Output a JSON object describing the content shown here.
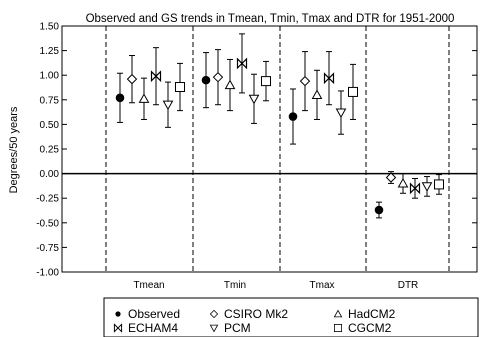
{
  "chart_data": {
    "type": "scatter",
    "title": "Observed and GS trends in Tmean, Tmin, Tmax and DTR for 1951-2000",
    "ylabel": "Degrees/50 years",
    "xlabel": "",
    "ylim": [
      -1.0,
      1.5
    ],
    "yticks": [
      "1.50",
      "1.25",
      "1.00",
      "0.75",
      "0.50",
      "0.25",
      "0.00",
      "-0.25",
      "-0.50",
      "-0.75",
      "-1.00"
    ],
    "categories": [
      "Tmean",
      "Tmin",
      "Tmax",
      "DTR"
    ],
    "grid": "dashed vertical category separators; solid zero line",
    "legend_position": "bottom",
    "series": [
      {
        "name": "Observed",
        "marker": "filled-circle",
        "values": [
          0.77,
          0.95,
          0.58,
          -0.37
        ],
        "lower": [
          0.52,
          0.67,
          0.3,
          -0.45
        ],
        "upper": [
          1.02,
          1.23,
          0.86,
          -0.29
        ]
      },
      {
        "name": "CSIRO Mk2",
        "marker": "diamond",
        "values": [
          0.96,
          0.98,
          0.94,
          -0.04
        ],
        "lower": [
          0.72,
          0.7,
          0.64,
          -0.1
        ],
        "upper": [
          1.2,
          1.26,
          1.24,
          0.02
        ]
      },
      {
        "name": "HadCM2",
        "marker": "triangle-up",
        "values": [
          0.76,
          0.9,
          0.8,
          -0.1
        ],
        "lower": [
          0.55,
          0.64,
          0.55,
          -0.2
        ],
        "upper": [
          0.97,
          1.16,
          1.05,
          0.0
        ]
      },
      {
        "name": "ECHAM4",
        "marker": "bowtie",
        "values": [
          0.99,
          1.12,
          0.97,
          -0.15
        ],
        "lower": [
          0.7,
          0.82,
          0.7,
          -0.25
        ],
        "upper": [
          1.28,
          1.42,
          1.24,
          -0.05
        ]
      },
      {
        "name": "PCM",
        "marker": "triangle-down",
        "values": [
          0.7,
          0.76,
          0.62,
          -0.13
        ],
        "lower": [
          0.47,
          0.51,
          0.4,
          -0.23
        ],
        "upper": [
          0.93,
          1.01,
          0.84,
          -0.03
        ]
      },
      {
        "name": "CGCM2",
        "marker": "square",
        "values": [
          0.88,
          0.94,
          0.83,
          -0.11
        ],
        "lower": [
          0.64,
          0.74,
          0.55,
          -0.21
        ],
        "upper": [
          1.12,
          1.14,
          1.11,
          -0.01
        ]
      }
    ],
    "legend_rows": [
      [
        "Observed",
        "CSIRO Mk2",
        "HadCM2"
      ],
      [
        "ECHAM4",
        "PCM",
        "CGCM2"
      ]
    ]
  }
}
